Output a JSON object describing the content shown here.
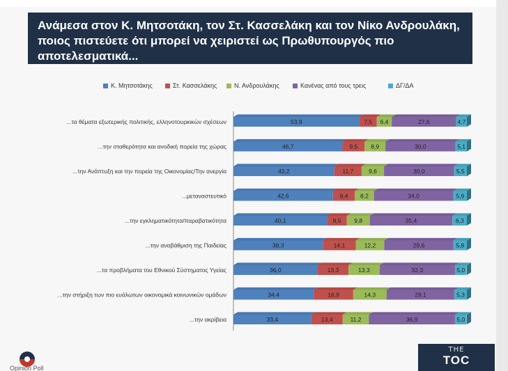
{
  "title": "Ανάμεσα στον Κ. Μητσοτάκη, τον Στ. Κασσελάκη και τον Νίκο Ανδρουλάκη, ποιος πιστεύετε ότι μπορεί να χειριστεί ως Πρωθυπουργός πιο αποτελεσματικά...",
  "logo_left_text": "Opinion Poll",
  "toc_logo": {
    "top": "THE",
    "main": "TOC"
  },
  "chart_data": {
    "type": "bar",
    "orientation": "horizontal",
    "stacked": true,
    "legend_position": "top",
    "categories": [
      "...τα θέματα εξωτερικής πολιτικής, ελληνοτουρκικών σχέσεων",
      "...την σταθερότητα και ανοδική πορεία της χώρας",
      "...την Ανάπτυξη και την πορεία της Οικονομίας/Την ανεργία",
      "...μεταναστευτικό",
      "...την εγκληματικότητα/παραβατικότητα",
      "...την αναβάθμιση της Παιδείας",
      "...τα προβλήματα του Εθνικού Σύστηματος Υγείας",
      "...την στήριξη των πιο ευάλωτων οικονομικά κοινωνικών ομάδων",
      "...την ακρίβεια"
    ],
    "series": [
      {
        "name": "Κ. Μητσοτάκης",
        "color": "#4f81bd",
        "values": [
          "53,9",
          "46,7",
          "43,2",
          "42,6",
          "40,1",
          "38,3",
          "36,0",
          "34,4",
          "33,4"
        ]
      },
      {
        "name": "Στ. Κασσελάκης",
        "color": "#c0504d",
        "values": [
          "7,5",
          "9,5",
          "11,7",
          "9,4",
          "8,5",
          "14,1",
          "13,3",
          "16,9",
          "13,4"
        ]
      },
      {
        "name": "Ν. Ανδρουλάκης",
        "color": "#9bbb59",
        "values": [
          "6,4",
          "8,9",
          "9,6",
          "8,2",
          "9,8",
          "12,2",
          "13,3",
          "14,3",
          "11,2"
        ]
      },
      {
        "name": "Κανένας από τους τρεις",
        "color": "#8064a2",
        "values": [
          "27,6",
          "30,0",
          "30,0",
          "34,0",
          "35,4",
          "29,6",
          "32,3",
          "29,1",
          "36,9"
        ]
      },
      {
        "name": "ΔΓ/ΔΑ",
        "color": "#4bacc6",
        "values": [
          "4,7",
          "5,1",
          "5,5",
          "5,9",
          "6,3",
          "5,8",
          "5,0",
          "5,3",
          "5,0"
        ]
      }
    ],
    "xlim": [
      0,
      100
    ],
    "grid": false
  }
}
